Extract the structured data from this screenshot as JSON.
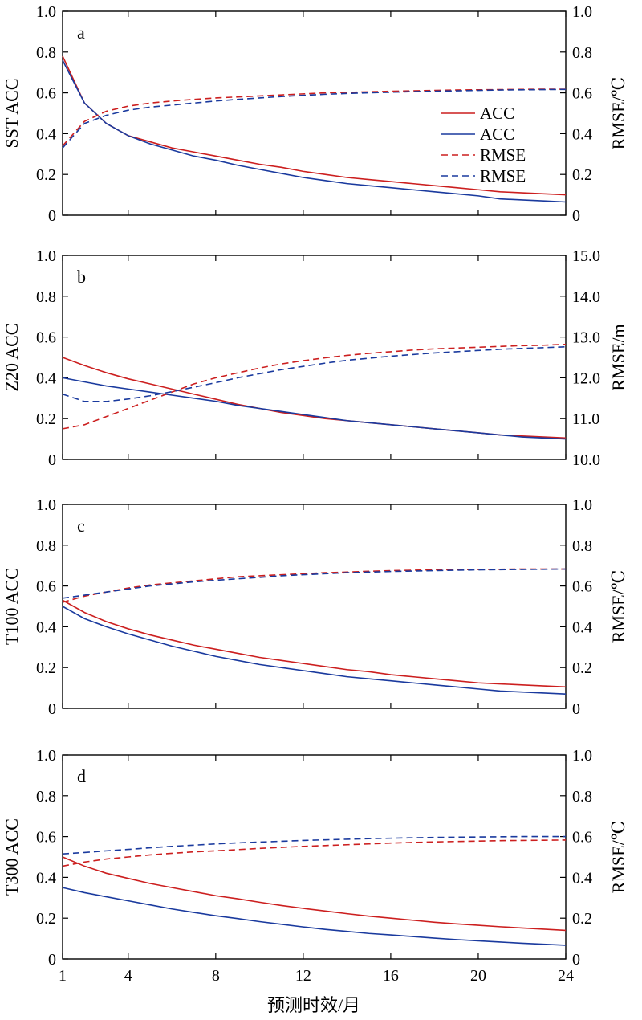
{
  "colors": {
    "red": "#cc1f1f",
    "blue": "#1a3a9e"
  },
  "xlabel": "预测时效/月",
  "xticks": [
    1,
    4,
    8,
    12,
    16,
    20,
    24
  ],
  "legend": [
    "ACC",
    "ACC",
    "RMSE",
    "RMSE"
  ],
  "chart_data": [
    {
      "type": "line",
      "panel": "a",
      "ylabel": "SST ACC",
      "y2label": "RMSE/℃",
      "xlim": [
        1,
        24
      ],
      "ylim": [
        0,
        1.0
      ],
      "y2lim": [
        0,
        1.0
      ],
      "yticks": [
        "0",
        "0.2",
        "0.4",
        "0.6",
        "0.8",
        "1.0"
      ],
      "y2ticks": [
        "0",
        "0.2",
        "0.4",
        "0.6",
        "0.8",
        "1.0"
      ],
      "legend_position": "right",
      "x": [
        1,
        2,
        3,
        4,
        5,
        6,
        7,
        8,
        9,
        10,
        11,
        12,
        13,
        14,
        15,
        16,
        17,
        18,
        19,
        20,
        21,
        22,
        23,
        24
      ],
      "series": [
        {
          "axis": "left",
          "color": "red",
          "dash": false,
          "values": [
            0.78,
            0.55,
            0.45,
            0.39,
            0.36,
            0.33,
            0.31,
            0.29,
            0.27,
            0.25,
            0.235,
            0.215,
            0.2,
            0.185,
            0.175,
            0.165,
            0.155,
            0.145,
            0.135,
            0.125,
            0.115,
            0.11,
            0.105,
            0.1
          ]
        },
        {
          "axis": "left",
          "color": "blue",
          "dash": false,
          "values": [
            0.76,
            0.55,
            0.45,
            0.39,
            0.35,
            0.32,
            0.29,
            0.27,
            0.245,
            0.225,
            0.205,
            0.185,
            0.17,
            0.155,
            0.145,
            0.135,
            0.125,
            0.115,
            0.105,
            0.095,
            0.08,
            0.075,
            0.07,
            0.065
          ]
        },
        {
          "axis": "right",
          "color": "red",
          "dash": true,
          "values": [
            0.34,
            0.46,
            0.51,
            0.535,
            0.55,
            0.56,
            0.568,
            0.575,
            0.58,
            0.585,
            0.59,
            0.595,
            0.6,
            0.602,
            0.605,
            0.608,
            0.61,
            0.612,
            0.614,
            0.615,
            0.616,
            0.617,
            0.618,
            0.618
          ]
        },
        {
          "axis": "right",
          "color": "blue",
          "dash": true,
          "values": [
            0.33,
            0.45,
            0.49,
            0.515,
            0.53,
            0.54,
            0.55,
            0.56,
            0.568,
            0.575,
            0.582,
            0.588,
            0.593,
            0.597,
            0.6,
            0.603,
            0.606,
            0.608,
            0.61,
            0.612,
            0.614,
            0.615,
            0.616,
            0.617
          ]
        }
      ]
    },
    {
      "type": "line",
      "panel": "b",
      "ylabel": "Z20 ACC",
      "y2label": "RMSE/m",
      "xlim": [
        1,
        24
      ],
      "ylim": [
        0,
        1.0
      ],
      "y2lim": [
        10.0,
        15.0
      ],
      "yticks": [
        "0",
        "0.2",
        "0.4",
        "0.6",
        "0.8",
        "1.0"
      ],
      "y2ticks": [
        "10.0",
        "11.0",
        "12.0",
        "13.0",
        "14.0",
        "15.0"
      ],
      "x": [
        1,
        2,
        3,
        4,
        5,
        6,
        7,
        8,
        9,
        10,
        11,
        12,
        13,
        14,
        15,
        16,
        17,
        18,
        19,
        20,
        21,
        22,
        23,
        24
      ],
      "series": [
        {
          "axis": "left",
          "color": "red",
          "dash": false,
          "values": [
            0.5,
            0.46,
            0.425,
            0.395,
            0.37,
            0.345,
            0.32,
            0.295,
            0.27,
            0.25,
            0.23,
            0.215,
            0.2,
            0.19,
            0.18,
            0.17,
            0.16,
            0.15,
            0.14,
            0.13,
            0.12,
            0.115,
            0.11,
            0.105
          ]
        },
        {
          "axis": "left",
          "color": "blue",
          "dash": false,
          "values": [
            0.4,
            0.38,
            0.36,
            0.345,
            0.33,
            0.315,
            0.3,
            0.285,
            0.265,
            0.25,
            0.235,
            0.22,
            0.205,
            0.19,
            0.18,
            0.17,
            0.16,
            0.15,
            0.14,
            0.13,
            0.12,
            0.11,
            0.105,
            0.1
          ]
        },
        {
          "axis": "right",
          "color": "red",
          "dash": true,
          "values": [
            10.75,
            10.85,
            11.05,
            11.25,
            11.45,
            11.65,
            11.85,
            12.0,
            12.12,
            12.24,
            12.34,
            12.42,
            12.49,
            12.55,
            12.6,
            12.64,
            12.68,
            12.71,
            12.73,
            12.75,
            12.77,
            12.79,
            12.8,
            12.82
          ]
        },
        {
          "axis": "right",
          "color": "blue",
          "dash": true,
          "values": [
            11.6,
            11.42,
            11.42,
            11.48,
            11.56,
            11.66,
            11.77,
            11.88,
            12.0,
            12.1,
            12.2,
            12.28,
            12.36,
            12.43,
            12.48,
            12.53,
            12.57,
            12.61,
            12.64,
            12.67,
            12.7,
            12.72,
            12.74,
            12.76
          ]
        }
      ]
    },
    {
      "type": "line",
      "panel": "c",
      "ylabel": "T100 ACC",
      "y2label": "RMSE/℃",
      "xlim": [
        1,
        24
      ],
      "ylim": [
        0,
        1.0
      ],
      "y2lim": [
        0,
        1.0
      ],
      "yticks": [
        "0",
        "0.2",
        "0.4",
        "0.6",
        "0.8",
        "1.0"
      ],
      "y2ticks": [
        "0",
        "0.2",
        "0.4",
        "0.6",
        "0.8",
        "1.0"
      ],
      "x": [
        1,
        2,
        3,
        4,
        5,
        6,
        7,
        8,
        9,
        10,
        11,
        12,
        13,
        14,
        15,
        16,
        17,
        18,
        19,
        20,
        21,
        22,
        23,
        24
      ],
      "series": [
        {
          "axis": "left",
          "color": "red",
          "dash": false,
          "values": [
            0.53,
            0.47,
            0.425,
            0.39,
            0.36,
            0.335,
            0.31,
            0.29,
            0.27,
            0.25,
            0.235,
            0.22,
            0.205,
            0.19,
            0.18,
            0.165,
            0.155,
            0.145,
            0.135,
            0.125,
            0.12,
            0.115,
            0.11,
            0.105
          ]
        },
        {
          "axis": "left",
          "color": "blue",
          "dash": false,
          "values": [
            0.5,
            0.44,
            0.4,
            0.365,
            0.335,
            0.305,
            0.28,
            0.255,
            0.235,
            0.215,
            0.2,
            0.185,
            0.17,
            0.155,
            0.145,
            0.135,
            0.125,
            0.115,
            0.105,
            0.095,
            0.085,
            0.08,
            0.075,
            0.07
          ]
        },
        {
          "axis": "right",
          "color": "red",
          "dash": true,
          "values": [
            0.52,
            0.55,
            0.57,
            0.59,
            0.605,
            0.615,
            0.625,
            0.635,
            0.645,
            0.65,
            0.655,
            0.66,
            0.665,
            0.668,
            0.672,
            0.675,
            0.677,
            0.679,
            0.68,
            0.681,
            0.682,
            0.683,
            0.683,
            0.683
          ]
        },
        {
          "axis": "right",
          "color": "blue",
          "dash": true,
          "values": [
            0.54,
            0.555,
            0.57,
            0.585,
            0.6,
            0.61,
            0.62,
            0.628,
            0.635,
            0.642,
            0.65,
            0.655,
            0.66,
            0.665,
            0.668,
            0.671,
            0.673,
            0.675,
            0.677,
            0.679,
            0.68,
            0.681,
            0.682,
            0.683
          ]
        }
      ]
    },
    {
      "type": "line",
      "panel": "d",
      "ylabel": "T300 ACC",
      "y2label": "RMSE/℃",
      "xlim": [
        1,
        24
      ],
      "ylim": [
        0,
        1.0
      ],
      "y2lim": [
        0,
        1.0
      ],
      "yticks": [
        "0",
        "0.2",
        "0.4",
        "0.6",
        "0.8",
        "1.0"
      ],
      "y2ticks": [
        "0",
        "0.2",
        "0.4",
        "0.6",
        "0.8",
        "1.0"
      ],
      "x": [
        1,
        2,
        3,
        4,
        5,
        6,
        7,
        8,
        9,
        10,
        11,
        12,
        13,
        14,
        15,
        16,
        17,
        18,
        19,
        20,
        21,
        22,
        23,
        24
      ],
      "series": [
        {
          "axis": "left",
          "color": "red",
          "dash": false,
          "values": [
            0.5,
            0.455,
            0.42,
            0.395,
            0.37,
            0.35,
            0.33,
            0.31,
            0.295,
            0.278,
            0.262,
            0.248,
            0.235,
            0.222,
            0.21,
            0.2,
            0.19,
            0.18,
            0.172,
            0.165,
            0.158,
            0.152,
            0.146,
            0.14
          ]
        },
        {
          "axis": "left",
          "color": "blue",
          "dash": false,
          "values": [
            0.35,
            0.325,
            0.305,
            0.285,
            0.265,
            0.245,
            0.228,
            0.212,
            0.198,
            0.183,
            0.17,
            0.157,
            0.145,
            0.135,
            0.125,
            0.118,
            0.11,
            0.102,
            0.095,
            0.089,
            0.083,
            0.077,
            0.072,
            0.067
          ]
        },
        {
          "axis": "right",
          "color": "red",
          "dash": true,
          "values": [
            0.455,
            0.475,
            0.49,
            0.5,
            0.51,
            0.518,
            0.525,
            0.53,
            0.536,
            0.542,
            0.547,
            0.552,
            0.556,
            0.56,
            0.564,
            0.568,
            0.571,
            0.574,
            0.576,
            0.578,
            0.58,
            0.581,
            0.582,
            0.583
          ]
        },
        {
          "axis": "right",
          "color": "blue",
          "dash": true,
          "values": [
            0.515,
            0.522,
            0.53,
            0.537,
            0.545,
            0.552,
            0.558,
            0.564,
            0.569,
            0.573,
            0.577,
            0.581,
            0.584,
            0.587,
            0.59,
            0.592,
            0.594,
            0.596,
            0.597,
            0.598,
            0.599,
            0.6,
            0.6,
            0.6
          ]
        }
      ]
    }
  ]
}
